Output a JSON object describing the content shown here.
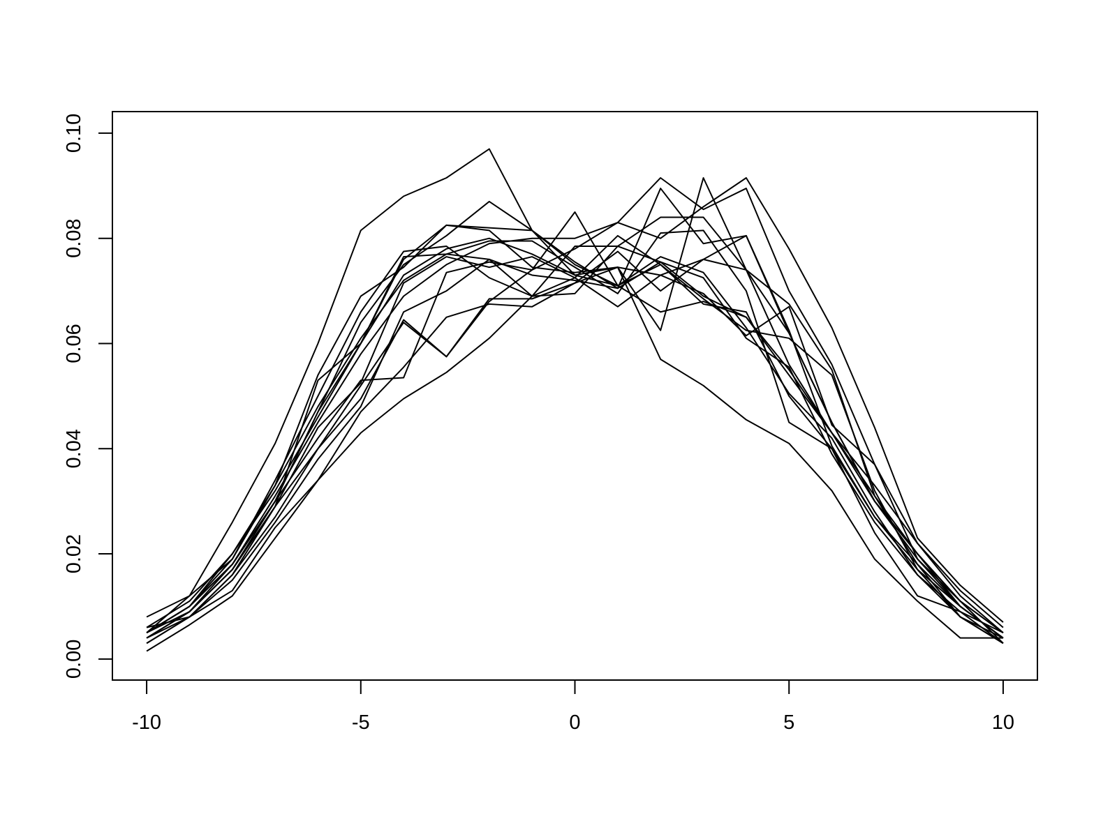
{
  "chart_data": {
    "type": "line",
    "color": "#000000",
    "x": [
      -10,
      -9,
      -8,
      -7,
      -6,
      -5,
      -4,
      -3,
      -2,
      -1,
      0,
      1,
      2,
      3,
      4,
      5,
      6,
      7,
      8,
      9,
      10
    ],
    "series": [
      {
        "values": [
          0.005,
          0.012,
          0.026,
          0.041,
          0.06,
          0.0815,
          0.088,
          0.0915,
          0.097,
          0.0815,
          0.075,
          0.071,
          0.066,
          0.068,
          0.065,
          0.055,
          0.043,
          0.03,
          0.02,
          0.011,
          0.005
        ]
      },
      {
        "values": [
          0.005,
          0.01,
          0.018,
          0.03,
          0.047,
          0.06,
          0.073,
          0.078,
          0.08,
          0.077,
          0.073,
          0.0745,
          0.057,
          0.052,
          0.0455,
          0.041,
          0.032,
          0.019,
          0.011,
          0.004,
          0.004
        ]
      },
      {
        "values": [
          0.0015,
          0.0065,
          0.012,
          0.023,
          0.034,
          0.043,
          0.0495,
          0.0545,
          0.061,
          0.069,
          0.0785,
          0.0785,
          0.084,
          0.084,
          0.074,
          0.062,
          0.045,
          0.03,
          0.019,
          0.01,
          0.004
        ]
      },
      {
        "values": [
          0.003,
          0.008,
          0.016,
          0.027,
          0.04,
          0.052,
          0.064,
          0.0575,
          0.068,
          0.074,
          0.078,
          0.083,
          0.08,
          0.086,
          0.0915,
          0.078,
          0.063,
          0.044,
          0.023,
          0.014,
          0.007
        ]
      },
      {
        "values": [
          0.004,
          0.009,
          0.018,
          0.031,
          0.045,
          0.058,
          0.069,
          0.075,
          0.079,
          0.08,
          0.08,
          0.083,
          0.0915,
          0.0855,
          0.0895,
          0.07,
          0.056,
          0.037,
          0.022,
          0.012,
          0.005
        ]
      },
      {
        "values": [
          0.005,
          0.01,
          0.02,
          0.033,
          0.048,
          0.061,
          0.072,
          0.077,
          0.076,
          0.073,
          0.072,
          0.0705,
          0.0895,
          0.079,
          0.0805,
          0.062,
          0.045,
          0.03,
          0.02,
          0.011,
          0.005
        ]
      },
      {
        "values": [
          0.006,
          0.011,
          0.02,
          0.032,
          0.046,
          0.06,
          0.076,
          0.0825,
          0.0815,
          0.0745,
          0.0735,
          0.0745,
          0.0625,
          0.0915,
          0.074,
          0.056,
          0.043,
          0.031,
          0.02,
          0.01,
          0.004
        ]
      },
      {
        "values": [
          0.004,
          0.009,
          0.017,
          0.03,
          0.047,
          0.064,
          0.075,
          0.0805,
          0.087,
          0.0815,
          0.0755,
          0.0705,
          0.0755,
          0.069,
          0.065,
          0.054,
          0.043,
          0.033,
          0.022,
          0.013,
          0.006
        ]
      },
      {
        "values": [
          0.005,
          0.01,
          0.018,
          0.03,
          0.042,
          0.053,
          0.0535,
          0.0735,
          0.0755,
          0.074,
          0.085,
          0.071,
          0.075,
          0.0675,
          0.066,
          0.05,
          0.04,
          0.027,
          0.018,
          0.01,
          0.004
        ]
      },
      {
        "values": [
          0.004,
          0.009,
          0.017,
          0.029,
          0.04,
          0.0495,
          0.0645,
          0.0575,
          0.0685,
          0.0685,
          0.0715,
          0.0775,
          0.07,
          0.076,
          0.074,
          0.0675,
          0.055,
          0.031,
          0.018,
          0.008,
          0.004
        ]
      },
      {
        "values": [
          0.008,
          0.012,
          0.019,
          0.033,
          0.054,
          0.069,
          0.0745,
          0.0825,
          0.082,
          0.0815,
          0.073,
          0.071,
          0.0765,
          0.0735,
          0.063,
          0.0505,
          0.042,
          0.028,
          0.016,
          0.009,
          0.003
        ]
      },
      {
        "values": [
          0.005,
          0.009,
          0.017,
          0.029,
          0.053,
          0.06,
          0.0765,
          0.077,
          0.0795,
          0.0795,
          0.0745,
          0.0695,
          0.081,
          0.0815,
          0.07,
          0.045,
          0.04,
          0.024,
          0.012,
          0.009,
          0.005
        ]
      },
      {
        "values": [
          0.003,
          0.008,
          0.015,
          0.026,
          0.038,
          0.048,
          0.066,
          0.07,
          0.076,
          0.069,
          0.0695,
          0.0785,
          0.0755,
          0.0725,
          0.061,
          0.0555,
          0.039,
          0.026,
          0.016,
          0.008,
          0.003
        ]
      },
      {
        "values": [
          0.005,
          0.01,
          0.019,
          0.034,
          0.05,
          0.066,
          0.0775,
          0.0785,
          0.0725,
          0.069,
          0.0725,
          0.0805,
          0.075,
          0.0685,
          0.0625,
          0.061,
          0.054,
          0.032,
          0.017,
          0.01,
          0.004
        ]
      },
      {
        "values": [
          0.006,
          0.008,
          0.013,
          0.025,
          0.034,
          0.047,
          0.0555,
          0.065,
          0.0675,
          0.067,
          0.0715,
          0.0745,
          0.073,
          0.0695,
          0.0615,
          0.067,
          0.0445,
          0.037,
          0.019,
          0.011,
          0.003
        ]
      },
      {
        "values": [
          0.004,
          0.008,
          0.016,
          0.029,
          0.044,
          0.0525,
          0.0715,
          0.0765,
          0.0745,
          0.0765,
          0.0725,
          0.067,
          0.073,
          0.076,
          0.0805,
          0.0625,
          0.0405,
          0.027,
          0.017,
          0.008,
          0.003
        ]
      }
    ],
    "xlim": [
      -10.8,
      10.8
    ],
    "ylim": [
      -0.004,
      0.1041
    ],
    "xticks": [
      -10,
      -5,
      0,
      5,
      10
    ],
    "yticks": [
      {
        "value": 0,
        "label": "0.00"
      },
      {
        "value": 0.02,
        "label": "0.02"
      },
      {
        "value": 0.04,
        "label": "0.04"
      },
      {
        "value": 0.06,
        "label": "0.06"
      },
      {
        "value": 0.08,
        "label": "0.08"
      },
      {
        "value": 0.1,
        "label": "0.10"
      }
    ]
  }
}
